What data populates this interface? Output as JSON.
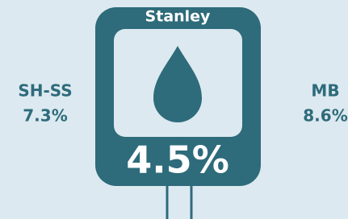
{
  "center": {
    "title": "Stanley",
    "value": "4.5%"
  },
  "left": {
    "label": "SH-SS",
    "value": "7.3%"
  },
  "right": {
    "label": "MB",
    "value": "8.6%"
  }
}
